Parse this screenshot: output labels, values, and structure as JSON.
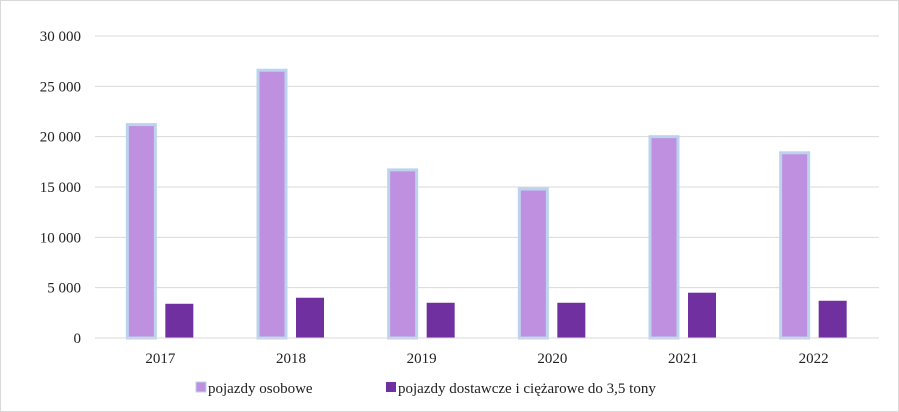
{
  "chart_data": {
    "type": "bar",
    "categories": [
      "2017",
      "2018",
      "2019",
      "2020",
      "2021",
      "2022"
    ],
    "series": [
      {
        "name": "pojazdy osobowe",
        "values": [
          21200,
          26600,
          16700,
          14800,
          20000,
          18400
        ],
        "color": "#bf8fe0"
      },
      {
        "name": "pojazdy dostawcze i ciężarowe do 3,5 tony",
        "values": [
          3400,
          4000,
          3500,
          3500,
          4500,
          3700
        ],
        "color": "#7030a0"
      }
    ],
    "ylim": [
      0,
      30000
    ],
    "yticks": [
      0,
      5000,
      10000,
      15000,
      20000,
      25000,
      30000
    ],
    "ytick_labels": [
      "0",
      "5 000",
      "10 000",
      "15 000",
      "20 000",
      "25 000",
      "30 000"
    ],
    "grid": true,
    "legend_position": "bottom",
    "colors": {
      "series1_outline": "#bcd3ee",
      "grid": "#d9d9d9"
    }
  }
}
